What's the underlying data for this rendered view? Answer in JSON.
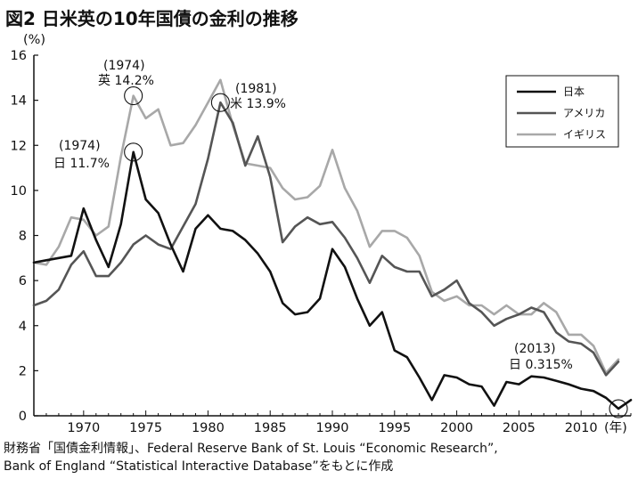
{
  "title": "図2 日米英の10年国債の金利の推移",
  "source_lines": [
    "財務省「国債金利情報」、Federal Reserve Bank of St. Louis “Economic Research”,",
    "Bank of England “Statistical Interactive Database”をもとに作成"
  ],
  "chart_data": {
    "type": "line",
    "title": "日米英の10年国債の金利の推移",
    "ylabel": "(%)",
    "xlabel": "(年)",
    "xlim": [
      1966,
      2014
    ],
    "ylim": [
      0,
      16
    ],
    "yticks": [
      0,
      2,
      4,
      6,
      8,
      10,
      12,
      14,
      16
    ],
    "xticks": [
      1970,
      1975,
      1980,
      1985,
      1990,
      1995,
      2000,
      2005,
      2010
    ],
    "grid": false,
    "legend_position": "top-right",
    "series": [
      {
        "name": "日本",
        "color": "#111111",
        "x": [
          1966,
          1967,
          1968,
          1969,
          1970,
          1971,
          1972,
          1973,
          1974,
          1975,
          1976,
          1977,
          1978,
          1979,
          1980,
          1981,
          1982,
          1983,
          1984,
          1985,
          1986,
          1987,
          1988,
          1989,
          1990,
          1991,
          1992,
          1993,
          1994,
          1995,
          1996,
          1997,
          1998,
          1999,
          2000,
          2001,
          2002,
          2003,
          2004,
          2005,
          2006,
          2007,
          2008,
          2009,
          2010,
          2011,
          2012,
          2013,
          2014
        ],
        "y": [
          6.8,
          6.9,
          7.0,
          7.1,
          9.2,
          7.8,
          6.6,
          8.5,
          11.7,
          9.6,
          9.0,
          7.6,
          6.4,
          8.3,
          8.9,
          8.3,
          8.2,
          7.8,
          7.2,
          6.4,
          5.0,
          4.5,
          4.6,
          5.2,
          7.4,
          6.6,
          5.2,
          4.0,
          4.6,
          2.9,
          2.6,
          1.7,
          0.7,
          1.8,
          1.7,
          1.4,
          1.3,
          0.45,
          1.5,
          1.4,
          1.75,
          1.7,
          1.55,
          1.4,
          1.2,
          1.1,
          0.8,
          0.315,
          0.7
        ]
      },
      {
        "name": "アメリカ",
        "color": "#555555",
        "x": [
          1966,
          1967,
          1968,
          1969,
          1970,
          1971,
          1972,
          1973,
          1974,
          1975,
          1976,
          1977,
          1978,
          1979,
          1980,
          1981,
          1982,
          1983,
          1984,
          1985,
          1986,
          1987,
          1988,
          1989,
          1990,
          1991,
          1992,
          1993,
          1994,
          1995,
          1996,
          1997,
          1998,
          1999,
          2000,
          2001,
          2002,
          2003,
          2004,
          2005,
          2006,
          2007,
          2008,
          2009,
          2010,
          2011,
          2012,
          2013
        ],
        "y": [
          4.9,
          5.1,
          5.6,
          6.7,
          7.3,
          6.2,
          6.2,
          6.8,
          7.6,
          8.0,
          7.6,
          7.4,
          8.4,
          9.4,
          11.4,
          13.9,
          13.0,
          11.1,
          12.4,
          10.6,
          7.7,
          8.4,
          8.8,
          8.5,
          8.6,
          7.9,
          7.0,
          5.9,
          7.1,
          6.6,
          6.4,
          6.4,
          5.3,
          5.6,
          6.0,
          5.0,
          4.6,
          4.0,
          4.3,
          4.5,
          4.8,
          4.6,
          3.7,
          3.3,
          3.2,
          2.8,
          1.8,
          2.4
        ]
      },
      {
        "name": "イギリス",
        "color": "#a8a8a8",
        "x": [
          1966,
          1967,
          1968,
          1969,
          1970,
          1971,
          1972,
          1973,
          1974,
          1975,
          1976,
          1977,
          1978,
          1979,
          1980,
          1981,
          1982,
          1983,
          1984,
          1985,
          1986,
          1987,
          1988,
          1989,
          1990,
          1991,
          1992,
          1993,
          1994,
          1995,
          1996,
          1997,
          1998,
          1999,
          2000,
          2001,
          2002,
          2003,
          2004,
          2005,
          2006,
          2007,
          2008,
          2009,
          2010,
          2011,
          2012,
          2013
        ],
        "y": [
          6.8,
          6.7,
          7.5,
          8.8,
          8.7,
          8.0,
          8.4,
          11.5,
          14.2,
          13.2,
          13.6,
          12.0,
          12.1,
          12.9,
          13.9,
          14.9,
          12.9,
          11.2,
          11.1,
          11.0,
          10.1,
          9.6,
          9.7,
          10.2,
          11.8,
          10.1,
          9.1,
          7.5,
          8.2,
          8.2,
          7.9,
          7.1,
          5.5,
          5.1,
          5.3,
          4.9,
          4.9,
          4.5,
          4.9,
          4.5,
          4.5,
          5.0,
          4.6,
          3.6,
          3.6,
          3.1,
          1.9,
          2.5
        ]
      }
    ],
    "annotations": [
      {
        "year": 1974,
        "value": 14.2,
        "lines": [
          "(1974)",
          "英 14.2%"
        ]
      },
      {
        "year": 1974,
        "value": 11.7,
        "lines": [
          "(1974)",
          "日 11.7%"
        ]
      },
      {
        "year": 1981,
        "value": 13.9,
        "lines": [
          "(1981)",
          "米 13.9%"
        ]
      },
      {
        "year": 2013,
        "value": 0.315,
        "lines": [
          "(2013)",
          "日 0.315%"
        ]
      }
    ]
  }
}
